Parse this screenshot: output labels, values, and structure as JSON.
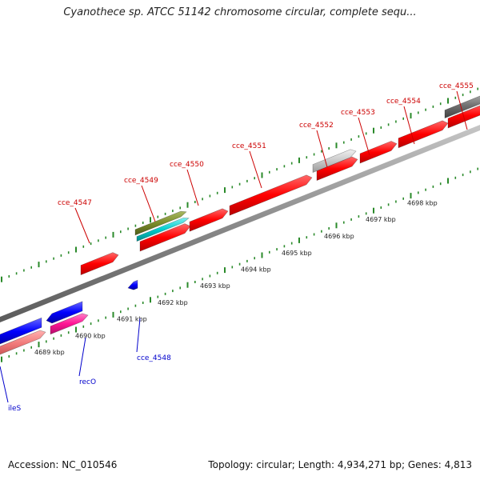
{
  "title": "Cyanothece sp. ATCC 51142 chromosome circular, complete sequ...",
  "footer": {
    "accession": "Accession: NC_010546",
    "info": "Topology: circular; Length: 4,934,271 bp; Genes: 4,813"
  },
  "colors": {
    "forward_gene": "#ff0000",
    "reverse_gene": "#0000ff",
    "forward_label": "#cc0000",
    "reverse_label": "#0000cc",
    "tick": "#2a8a2a",
    "backbone": "#888888"
  },
  "scale_labels": [
    "4689 kbp",
    "4690 kbp",
    "4691 kbp",
    "4692 kbp",
    "4693 kbp",
    "4694 kbp",
    "4695 kbp",
    "4696 kbp",
    "4697 kbp",
    "4698 kbp"
  ],
  "forward_labels": [
    "cce_4547",
    "cce_4549",
    "cce_4550",
    "cce_4551",
    "cce_4552",
    "cce_4553",
    "cce_4554",
    "cce_4555"
  ],
  "reverse_labels": [
    "ileS",
    "recO",
    "cce_4548"
  ]
}
